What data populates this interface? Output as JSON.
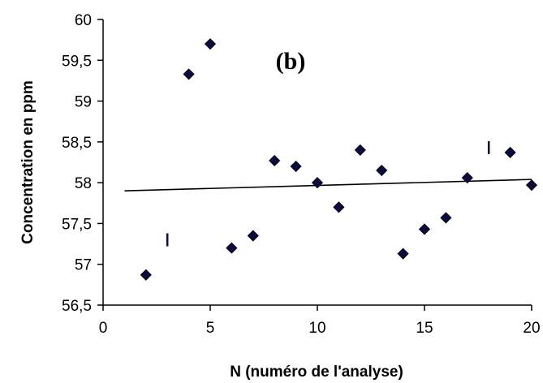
{
  "chart_data": {
    "type": "scatter",
    "title": "",
    "annotation": "(b)",
    "xlabel": "N (numéro de l'analyse)",
    "ylabel": "Concentration en ppm",
    "xlim": [
      0,
      20
    ],
    "ylim": [
      56.5,
      60
    ],
    "xticks": [
      0,
      5,
      10,
      15,
      20
    ],
    "xtick_labels": [
      "0",
      "5",
      "10",
      "15",
      "20"
    ],
    "yticks": [
      56.5,
      57,
      57.5,
      58,
      58.5,
      59,
      59.5,
      60
    ],
    "ytick_labels": [
      "56,5",
      "57",
      "57,5",
      "58",
      "58,5",
      "59",
      "59,5",
      "60"
    ],
    "grid": false,
    "marker_color": "#0a0a3c",
    "series": [
      {
        "values": [
          {
            "x": 2,
            "y": 56.87
          },
          {
            "x": 4,
            "y": 59.33
          },
          {
            "x": 5,
            "y": 59.7
          },
          {
            "x": 6,
            "y": 57.2
          },
          {
            "x": 7,
            "y": 57.35
          },
          {
            "x": 8,
            "y": 58.27
          },
          {
            "x": 9,
            "y": 58.2
          },
          {
            "x": 10,
            "y": 58.0
          },
          {
            "x": 11,
            "y": 57.7
          },
          {
            "x": 12,
            "y": 58.4
          },
          {
            "x": 13,
            "y": 58.15
          },
          {
            "x": 14,
            "y": 57.13
          },
          {
            "x": 15,
            "y": 57.43
          },
          {
            "x": 16,
            "y": 57.57
          },
          {
            "x": 17,
            "y": 58.06
          },
          {
            "x": 19,
            "y": 58.37
          },
          {
            "x": 20,
            "y": 57.97
          }
        ]
      }
    ],
    "trendline": {
      "x": [
        1,
        20
      ],
      "y": [
        57.9,
        58.04
      ]
    },
    "limit_marks": [
      {
        "x": 3,
        "y": 57.3
      },
      {
        "x": 18,
        "y": 58.43
      }
    ]
  }
}
